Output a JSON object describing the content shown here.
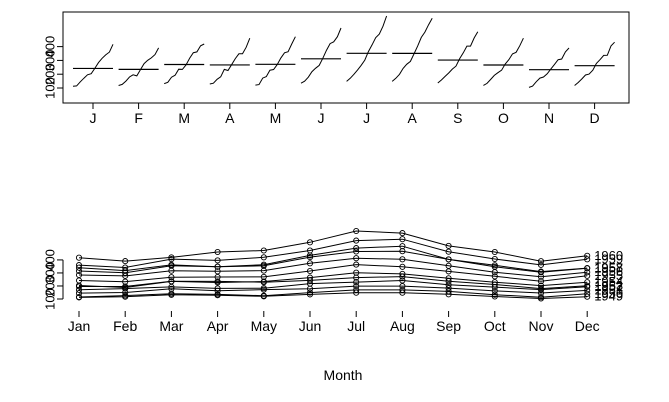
{
  "chart_data": [
    {
      "type": "line",
      "subtype": "monthplot",
      "categories": [
        "J",
        "F",
        "M",
        "A",
        "M",
        "J",
        "J",
        "A",
        "S",
        "O",
        "N",
        "D"
      ],
      "yticks": [
        100,
        200,
        300,
        400
      ],
      "ylim": [
        100,
        622
      ],
      "years": [
        1949,
        1950,
        1951,
        1952,
        1953,
        1954,
        1955,
        1956,
        1957,
        1958,
        1959,
        1960
      ],
      "series": [
        {
          "values": [
            112,
            115,
            145,
            171,
            196,
            204,
            242,
            284,
            315,
            340,
            360,
            417
          ]
        },
        {
          "values": [
            118,
            126,
            150,
            180,
            196,
            188,
            233,
            277,
            301,
            318,
            342,
            391
          ]
        },
        {
          "values": [
            132,
            141,
            178,
            193,
            236,
            235,
            267,
            317,
            356,
            362,
            406,
            419
          ]
        },
        {
          "values": [
            129,
            135,
            163,
            181,
            235,
            227,
            269,
            313,
            348,
            348,
            396,
            461
          ]
        },
        {
          "values": [
            121,
            125,
            172,
            183,
            229,
            234,
            270,
            318,
            355,
            363,
            420,
            472
          ]
        },
        {
          "values": [
            135,
            149,
            178,
            218,
            243,
            264,
            315,
            374,
            422,
            435,
            472,
            535
          ]
        },
        {
          "values": [
            148,
            170,
            199,
            230,
            264,
            302,
            364,
            413,
            465,
            491,
            548,
            622
          ]
        },
        {
          "values": [
            148,
            170,
            199,
            242,
            272,
            293,
            347,
            405,
            467,
            505,
            559,
            606
          ]
        },
        {
          "values": [
            136,
            158,
            184,
            209,
            237,
            259,
            312,
            355,
            404,
            404,
            463,
            508
          ]
        },
        {
          "values": [
            119,
            133,
            162,
            191,
            211,
            229,
            274,
            306,
            347,
            359,
            407,
            461
          ]
        },
        {
          "values": [
            104,
            114,
            146,
            172,
            180,
            203,
            237,
            271,
            305,
            310,
            362,
            390
          ]
        },
        {
          "values": [
            118,
            140,
            166,
            194,
            201,
            229,
            278,
            306,
            336,
            337,
            405,
            432
          ]
        }
      ],
      "means": [
        241.75,
        235.0,
        270.17,
        267.08,
        271.83,
        311.67,
        351.33,
        351.08,
        302.42,
        266.58,
        232.83,
        261.83
      ]
    },
    {
      "type": "line",
      "subtype": "seasonal",
      "categories": [
        "Jan",
        "Feb",
        "Mar",
        "Apr",
        "May",
        "Jun",
        "Jul",
        "Aug",
        "Sep",
        "Oct",
        "Nov",
        "Dec"
      ],
      "xlabel": "Month",
      "yticks": [
        100,
        200,
        300,
        400
      ],
      "ylim": [
        100,
        622
      ],
      "series": [
        {
          "name": "1949",
          "values": [
            112,
            118,
            132,
            129,
            121,
            135,
            148,
            148,
            136,
            119,
            104,
            118
          ]
        },
        {
          "name": "1950",
          "values": [
            115,
            126,
            141,
            135,
            125,
            149,
            170,
            170,
            158,
            133,
            114,
            140
          ]
        },
        {
          "name": "1951",
          "values": [
            145,
            150,
            178,
            163,
            172,
            178,
            199,
            199,
            184,
            162,
            146,
            166
          ]
        },
        {
          "name": "1952",
          "values": [
            171,
            180,
            193,
            181,
            183,
            218,
            230,
            242,
            209,
            191,
            172,
            194
          ]
        },
        {
          "name": "1953",
          "values": [
            196,
            196,
            236,
            235,
            229,
            243,
            264,
            272,
            237,
            211,
            180,
            201
          ]
        },
        {
          "name": "1954",
          "values": [
            204,
            188,
            235,
            227,
            234,
            264,
            302,
            293,
            259,
            229,
            203,
            229
          ]
        },
        {
          "name": "1955",
          "values": [
            242,
            233,
            267,
            269,
            270,
            315,
            364,
            347,
            312,
            274,
            237,
            278
          ]
        },
        {
          "name": "1956",
          "values": [
            284,
            277,
            317,
            313,
            318,
            374,
            413,
            405,
            355,
            306,
            271,
            306
          ]
        },
        {
          "name": "1957",
          "values": [
            315,
            301,
            356,
            348,
            355,
            422,
            465,
            467,
            404,
            347,
            305,
            336
          ]
        },
        {
          "name": "1958",
          "values": [
            340,
            318,
            362,
            348,
            363,
            435,
            491,
            505,
            404,
            359,
            310,
            337
          ]
        },
        {
          "name": "1959",
          "values": [
            360,
            342,
            406,
            396,
            420,
            472,
            548,
            559,
            463,
            407,
            362,
            405
          ]
        },
        {
          "name": "1960",
          "values": [
            417,
            391,
            419,
            461,
            472,
            535,
            622,
            606,
            508,
            461,
            390,
            432
          ]
        }
      ]
    }
  ]
}
